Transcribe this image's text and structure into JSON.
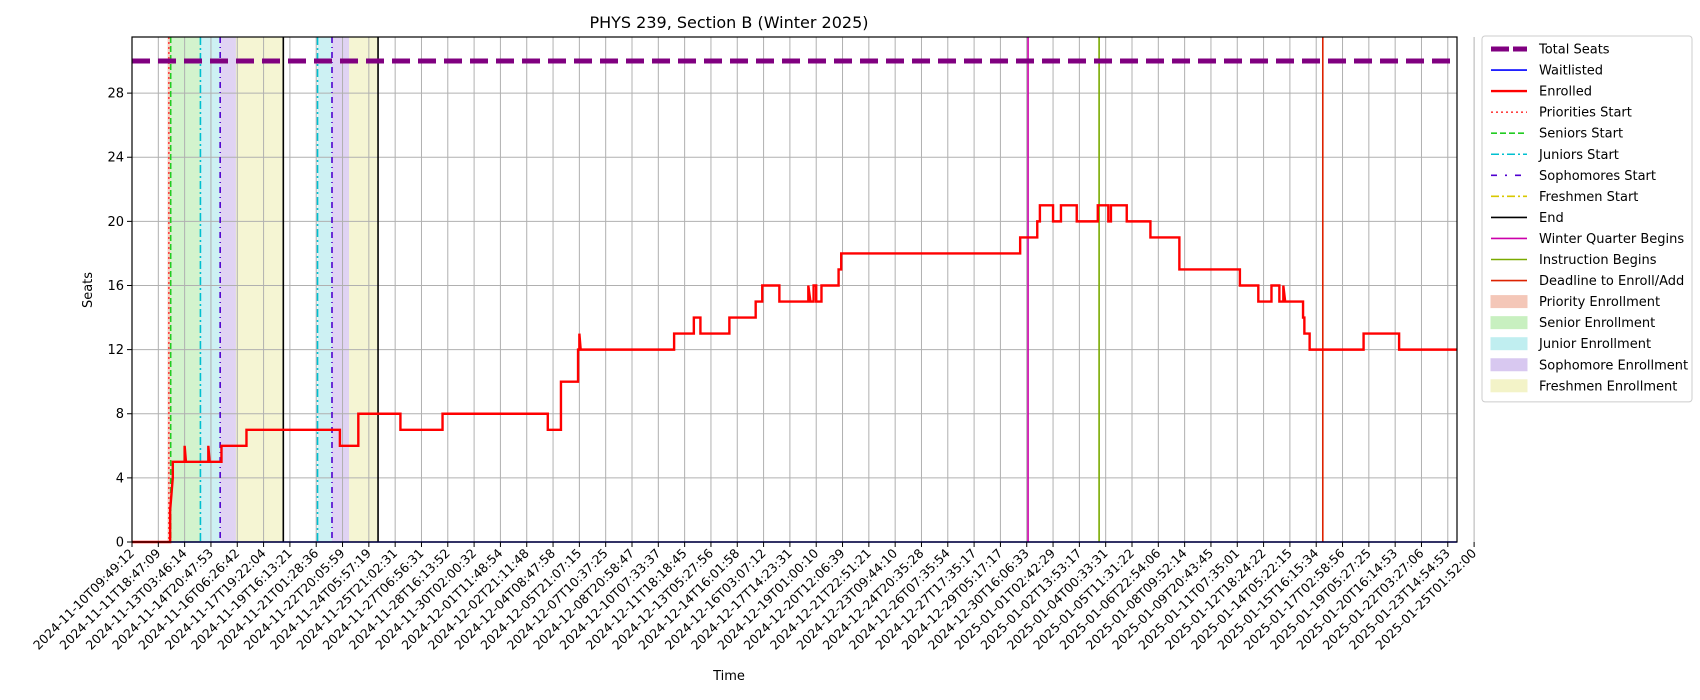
{
  "chart_data": {
    "type": "line",
    "title": "PHYS 239, Section B (Winter 2025)",
    "xlabel": "Time",
    "ylabel": "Seats",
    "ylim": [
      0,
      31.5
    ],
    "xlim": [
      0,
      50.35
    ],
    "yticks": [
      0,
      4,
      8,
      12,
      16,
      20,
      24,
      28
    ],
    "grid": true,
    "legend_position": "outside-right",
    "total_seats": 30,
    "x_tick_labels": [
      "2024-11-10T09:49:12",
      "2024-11-11T18:47:09",
      "2024-11-13T03:46:14",
      "2024-11-14T20:47:53",
      "2024-11-16T06:26:42",
      "2024-11-17T19:22:04",
      "2024-11-19T16:13:21",
      "2024-11-21T01:28:36",
      "2024-11-22T20:05:59",
      "2024-11-24T05:57:19",
      "2024-11-25T21:02:31",
      "2024-11-27T06:56:31",
      "2024-11-28T16:13:52",
      "2024-11-30T02:00:32",
      "2024-12-01T11:48:54",
      "2024-12-02T21:11:48",
      "2024-12-04T08:47:58",
      "2024-12-05T21:07:15",
      "2024-12-07T10:37:25",
      "2024-12-08T20:58:47",
      "2024-12-10T07:33:37",
      "2024-12-11T18:18:45",
      "2024-12-13T05:27:56",
      "2024-12-14T16:01:58",
      "2024-12-16T03:07:12",
      "2024-12-17T14:23:31",
      "2024-12-19T01:00:10",
      "2024-12-20T12:06:39",
      "2024-12-21T22:51:21",
      "2024-12-23T09:44:10",
      "2024-12-24T20:35:28",
      "2024-12-26T07:35:54",
      "2024-12-27T17:35:17",
      "2024-12-29T05:17:17",
      "2024-12-30T16:06:33",
      "2025-01-01T02:42:29",
      "2025-01-02T13:53:17",
      "2025-01-04T00:33:31",
      "2025-01-05T11:31:22",
      "2025-01-06T22:54:06",
      "2025-01-08T09:52:14",
      "2025-01-09T20:43:45",
      "2025-01-11T07:35:01",
      "2025-01-12T18:24:22",
      "2025-01-14T05:22:15",
      "2025-01-15T16:15:34",
      "2025-01-17T02:58:56",
      "2025-01-19T05:27:25",
      "2025-01-20T16:14:53",
      "2025-01-22T03:27:06",
      "2025-01-23T14:54:53",
      "2025-01-25T01:52:00"
    ],
    "series": [
      {
        "name": "Enrolled",
        "color": "#ff0000",
        "points": [
          [
            0,
            0
          ],
          [
            1.45,
            0
          ],
          [
            1.45,
            2
          ],
          [
            1.5,
            3
          ],
          [
            1.55,
            4
          ],
          [
            1.55,
            5
          ],
          [
            2,
            5
          ],
          [
            2,
            6
          ],
          [
            2.05,
            5
          ],
          [
            2.9,
            5
          ],
          [
            2.9,
            6
          ],
          [
            2.95,
            5
          ],
          [
            3.4,
            5
          ],
          [
            3.4,
            6
          ],
          [
            4.15,
            6
          ],
          [
            4.35,
            6
          ],
          [
            4.35,
            7
          ],
          [
            7.9,
            7
          ],
          [
            7.9,
            6
          ],
          [
            8.6,
            6
          ],
          [
            8.6,
            8
          ],
          [
            10.2,
            8
          ],
          [
            10.2,
            7
          ],
          [
            11.8,
            7
          ],
          [
            11.8,
            8
          ],
          [
            15.8,
            8
          ],
          [
            15.8,
            7
          ],
          [
            16.3,
            7
          ],
          [
            16.3,
            10
          ],
          [
            16.95,
            10
          ],
          [
            16.95,
            12
          ],
          [
            17,
            12
          ],
          [
            17,
            13
          ],
          [
            17.05,
            12
          ],
          [
            20.6,
            12
          ],
          [
            20.6,
            13
          ],
          [
            21.35,
            13
          ],
          [
            21.35,
            14
          ],
          [
            21.6,
            14
          ],
          [
            21.6,
            13
          ],
          [
            22.7,
            13
          ],
          [
            22.7,
            14
          ],
          [
            23.7,
            14
          ],
          [
            23.7,
            15
          ],
          [
            23.95,
            15
          ],
          [
            23.95,
            16
          ],
          [
            24.6,
            16
          ],
          [
            24.6,
            15
          ],
          [
            25.7,
            15
          ],
          [
            25.7,
            16
          ],
          [
            25.78,
            15
          ],
          [
            25.9,
            15
          ],
          [
            25.9,
            16
          ],
          [
            26,
            16
          ],
          [
            26,
            15
          ],
          [
            26.2,
            15
          ],
          [
            26.2,
            16
          ],
          [
            26.85,
            16
          ],
          [
            26.85,
            17
          ],
          [
            26.95,
            17
          ],
          [
            26.95,
            18
          ],
          [
            33.75,
            18
          ],
          [
            33.75,
            19
          ],
          [
            34.4,
            19
          ],
          [
            34.4,
            20
          ],
          [
            34.5,
            20
          ],
          [
            34.5,
            21
          ],
          [
            35,
            21
          ],
          [
            35,
            20
          ],
          [
            35.3,
            20
          ],
          [
            35.3,
            21
          ],
          [
            35.9,
            21
          ],
          [
            35.9,
            20
          ],
          [
            36.7,
            20
          ],
          [
            36.7,
            21
          ],
          [
            37.1,
            21
          ],
          [
            37.1,
            20
          ],
          [
            37.2,
            20
          ],
          [
            37.2,
            21
          ],
          [
            37.8,
            21
          ],
          [
            37.8,
            20
          ],
          [
            38.7,
            20
          ],
          [
            38.7,
            19
          ],
          [
            39.8,
            19
          ],
          [
            39.8,
            17
          ],
          [
            42.1,
            17
          ],
          [
            42.1,
            16
          ],
          [
            42.8,
            16
          ],
          [
            42.8,
            15
          ],
          [
            43.3,
            15
          ],
          [
            43.3,
            16
          ],
          [
            43.6,
            16
          ],
          [
            43.6,
            15
          ],
          [
            43.75,
            15
          ],
          [
            43.75,
            16
          ],
          [
            43.82,
            15
          ],
          [
            44.5,
            15
          ],
          [
            44.5,
            14
          ],
          [
            44.55,
            14
          ],
          [
            44.55,
            13
          ],
          [
            44.75,
            13
          ],
          [
            44.75,
            12
          ],
          [
            46.8,
            12
          ],
          [
            46.8,
            13
          ],
          [
            48.15,
            13
          ],
          [
            48.15,
            12
          ],
          [
            50.35,
            12
          ]
        ]
      },
      {
        "name": "Waitlisted",
        "color": "#0000ff",
        "points": [
          [
            0,
            0
          ],
          [
            50.35,
            0
          ]
        ]
      }
    ],
    "shaded_periods": [
      {
        "name": "Priority Enrollment",
        "color": "#f4c7b8",
        "start": 1.35,
        "end": 1.47
      },
      {
        "name": "Senior Enrollment",
        "color": "#c8f0c0",
        "start": 1.47,
        "end": 2.6
      },
      {
        "name": "Junior Enrollment",
        "color": "#c0eef0",
        "start": 2.6,
        "end": 3.35
      },
      {
        "name": "Sophomore Enrollment",
        "color": "#d8c8f0",
        "start": 3.35,
        "end": 3.95
      },
      {
        "name": "Freshmen Enrollment",
        "color": "#f3f3c8",
        "start": 3.95,
        "end": 5.75
      },
      {
        "name": "Junior Enrollment",
        "color": "#c0eef0",
        "start": 7.05,
        "end": 7.6
      },
      {
        "name": "Sophomore Enrollment",
        "color": "#d8c8f0",
        "start": 7.6,
        "end": 8.25
      },
      {
        "name": "Freshmen Enrollment",
        "color": "#f3f3c8",
        "start": 8.25,
        "end": 9.35
      }
    ],
    "vertical_markers": [
      {
        "name": "Priorities Start",
        "color": "#ff4040",
        "dash": "2,3",
        "x": 1.4
      },
      {
        "name": "Seniors Start",
        "color": "#22cc22",
        "dash": "6,3",
        "x": 1.47
      },
      {
        "name": "Juniors Start",
        "color": "#00c0d0",
        "dash": "8,3,2,3",
        "x": 2.6
      },
      {
        "name": "Sophomores Start",
        "color": "#5000d0",
        "dash": "6,4,1,4",
        "x": 3.35
      },
      {
        "name": "Juniors Start",
        "color": "#00c0d0",
        "dash": "8,3,2,3",
        "x": 7.05
      },
      {
        "name": "Sophomores Start",
        "color": "#5000d0",
        "dash": "6,4,1,4",
        "x": 7.6
      },
      {
        "name": "End",
        "color": "#000000",
        "dash": "",
        "x": 5.75
      },
      {
        "name": "End",
        "color": "#000000",
        "dash": "",
        "x": 9.35
      },
      {
        "name": "Winter Quarter Begins",
        "color": "#cc00aa",
        "dash": "",
        "x": 34.05
      },
      {
        "name": "Instruction Begins",
        "color": "#7aaa00",
        "dash": "",
        "x": 36.75
      },
      {
        "name": "Deadline to Enroll/Add",
        "color": "#dd2200",
        "dash": "",
        "x": 45.25
      }
    ],
    "legend": [
      {
        "label": "Total Seats",
        "kind": "thick-dash",
        "color": "#800080"
      },
      {
        "label": "Waitlisted",
        "kind": "line",
        "color": "#0000ff"
      },
      {
        "label": "Enrolled",
        "kind": "thick-line",
        "color": "#ff0000"
      },
      {
        "label": "Priorities Start",
        "kind": "dotted",
        "color": "#ff4040"
      },
      {
        "label": "Seniors Start",
        "kind": "dashed",
        "color": "#22cc22"
      },
      {
        "label": "Juniors Start",
        "kind": "dashdot",
        "color": "#00c0d0"
      },
      {
        "label": "Sophomores Start",
        "kind": "loose-dashdot",
        "color": "#5000d0"
      },
      {
        "label": "Freshmen Start",
        "kind": "dashdot",
        "color": "#d8c800"
      },
      {
        "label": "End",
        "kind": "line",
        "color": "#000000"
      },
      {
        "label": "Winter Quarter Begins",
        "kind": "line",
        "color": "#cc00aa"
      },
      {
        "label": "Instruction Begins",
        "kind": "line",
        "color": "#7aaa00"
      },
      {
        "label": "Deadline to Enroll/Add",
        "kind": "line",
        "color": "#dd2200"
      },
      {
        "label": "Priority Enrollment",
        "kind": "patch",
        "color": "#f4c7b8"
      },
      {
        "label": "Senior Enrollment",
        "kind": "patch",
        "color": "#c8f0c0"
      },
      {
        "label": "Junior Enrollment",
        "kind": "patch",
        "color": "#c0eef0"
      },
      {
        "label": "Sophomore Enrollment",
        "kind": "patch",
        "color": "#d8c8f0"
      },
      {
        "label": "Freshmen Enrollment",
        "kind": "patch",
        "color": "#f3f3c8"
      }
    ]
  }
}
